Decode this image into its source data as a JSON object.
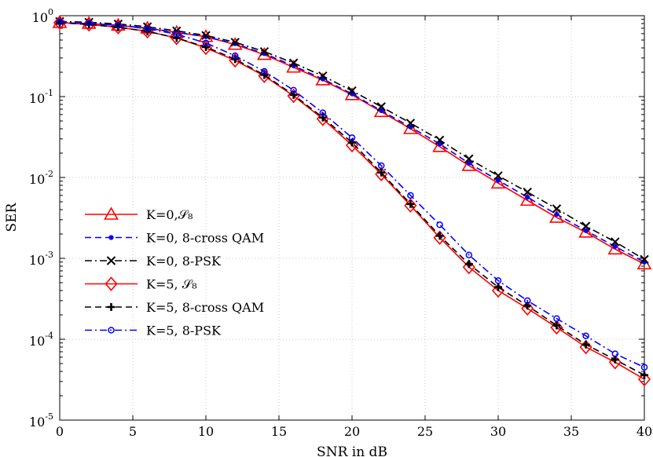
{
  "chart_data": {
    "type": "line",
    "xlabel": "SNR in dB",
    "ylabel": "SER",
    "xlim": [
      0,
      40
    ],
    "ylim": [
      1e-05,
      1
    ],
    "yscale": "log",
    "grid": true,
    "legend_position": "left",
    "xticks": [
      "0",
      "5",
      "10",
      "15",
      "20",
      "25",
      "30",
      "35",
      "40"
    ],
    "yticks": [
      {
        "base": "10",
        "exp": "0"
      },
      {
        "base": "10",
        "exp": "-1"
      },
      {
        "base": "10",
        "exp": "-2"
      },
      {
        "base": "10",
        "exp": "-3"
      },
      {
        "base": "10",
        "exp": "-4"
      },
      {
        "base": "10",
        "exp": "-5"
      }
    ],
    "x": [
      0,
      2,
      4,
      6,
      8,
      10,
      12,
      14,
      16,
      18,
      20,
      22,
      24,
      26,
      28,
      30,
      32,
      34,
      36,
      38,
      40
    ],
    "series": [
      {
        "name": "K=0,𝒮₈",
        "color": "#ff0000",
        "marker": "triangle",
        "dash": "solid",
        "values": [
          0.82,
          0.8,
          0.76,
          0.7,
          0.62,
          0.55,
          0.44,
          0.33,
          0.23,
          0.16,
          0.105,
          0.065,
          0.04,
          0.024,
          0.014,
          0.0085,
          0.0052,
          0.0032,
          0.0021,
          0.0013,
          0.00085
        ]
      },
      {
        "name": "K=0, 8-cross QAM",
        "color": "#0000ff",
        "marker": "dot",
        "dash": "dashed",
        "values": [
          0.82,
          0.8,
          0.76,
          0.7,
          0.62,
          0.55,
          0.45,
          0.34,
          0.24,
          0.165,
          0.108,
          0.067,
          0.042,
          0.026,
          0.015,
          0.0092,
          0.0057,
          0.0035,
          0.0022,
          0.0014,
          0.0009
        ]
      },
      {
        "name": "K=0, 8-PSK",
        "color": "#000000",
        "marker": "x",
        "dash": "dashdot",
        "values": [
          0.85,
          0.83,
          0.79,
          0.73,
          0.65,
          0.57,
          0.47,
          0.36,
          0.26,
          0.18,
          0.118,
          0.075,
          0.047,
          0.029,
          0.017,
          0.0105,
          0.0066,
          0.0041,
          0.0025,
          0.0016,
          0.00097
        ]
      },
      {
        "name": "K=5, 𝒮₈",
        "color": "#ff0000",
        "marker": "diamond",
        "dash": "solid",
        "values": [
          0.82,
          0.78,
          0.72,
          0.64,
          0.53,
          0.4,
          0.28,
          0.18,
          0.102,
          0.053,
          0.025,
          0.011,
          0.0045,
          0.0018,
          0.00078,
          0.0004,
          0.00024,
          0.00014,
          8e-05,
          5.2e-05,
          3.2e-05
        ]
      },
      {
        "name": "K=5, 8-cross QAM",
        "color": "#000000",
        "marker": "plus",
        "dash": "dashed",
        "values": [
          0.82,
          0.78,
          0.72,
          0.64,
          0.53,
          0.41,
          0.29,
          0.185,
          0.105,
          0.055,
          0.027,
          0.0115,
          0.0047,
          0.0019,
          0.00085,
          0.00044,
          0.00026,
          0.000148,
          8.6e-05,
          5.6e-05,
          3.6e-05
        ]
      },
      {
        "name": "K=5, 8-PSK",
        "color": "#0000ff",
        "marker": "circle",
        "dash": "dashdot",
        "values": [
          0.84,
          0.81,
          0.76,
          0.69,
          0.59,
          0.46,
          0.32,
          0.205,
          0.12,
          0.063,
          0.031,
          0.014,
          0.006,
          0.0026,
          0.0011,
          0.00053,
          0.0003,
          0.00018,
          0.00011,
          6.6e-05,
          4.5e-05
        ]
      }
    ]
  }
}
